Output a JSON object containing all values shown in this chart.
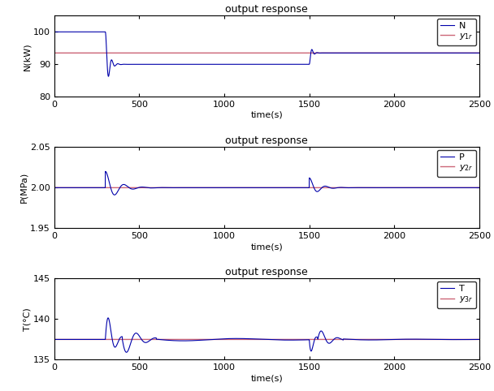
{
  "title": "output response",
  "subplot1": {
    "ylabel": "N(kW)",
    "xlabel": "time(s)",
    "xlim": [
      0,
      2500
    ],
    "ylim": [
      80,
      105
    ],
    "yticks": [
      80,
      90,
      100
    ],
    "xticks": [
      0,
      500,
      1000,
      1500,
      2000,
      2500
    ],
    "legend": [
      "N",
      "y_{1r}"
    ],
    "ref_value": 93.5,
    "step1_time": 300,
    "step1_from": 100.0,
    "step1_to": 90.0,
    "step2_time": 1500,
    "step2_to": 93.5,
    "blue_color": "#0000AA",
    "pink_color": "#CC6677"
  },
  "subplot2": {
    "ylabel": "P(MPa)",
    "xlabel": "time(s)",
    "xlim": [
      0,
      2500
    ],
    "ylim": [
      1.95,
      2.05
    ],
    "yticks": [
      1.95,
      2.0,
      2.05
    ],
    "xticks": [
      0,
      500,
      1000,
      1500,
      2000,
      2500
    ],
    "legend": [
      "P",
      "y_{2r}"
    ],
    "ref_value": 2.0,
    "blue_color": "#0000AA",
    "pink_color": "#CC6677"
  },
  "subplot3": {
    "ylabel": "T(°C)",
    "xlabel": "time(s)",
    "xlim": [
      0,
      2500
    ],
    "ylim": [
      135,
      145
    ],
    "yticks": [
      135,
      140,
      145
    ],
    "xticks": [
      0,
      500,
      1000,
      1500,
      2000,
      2500
    ],
    "legend": [
      "T",
      "y_{3r}"
    ],
    "ref_value": 137.5,
    "blue_color": "#0000AA",
    "pink_color": "#CC6677"
  },
  "fig_facecolor": "#f0f0f0",
  "axes_facecolor": "#ffffff"
}
